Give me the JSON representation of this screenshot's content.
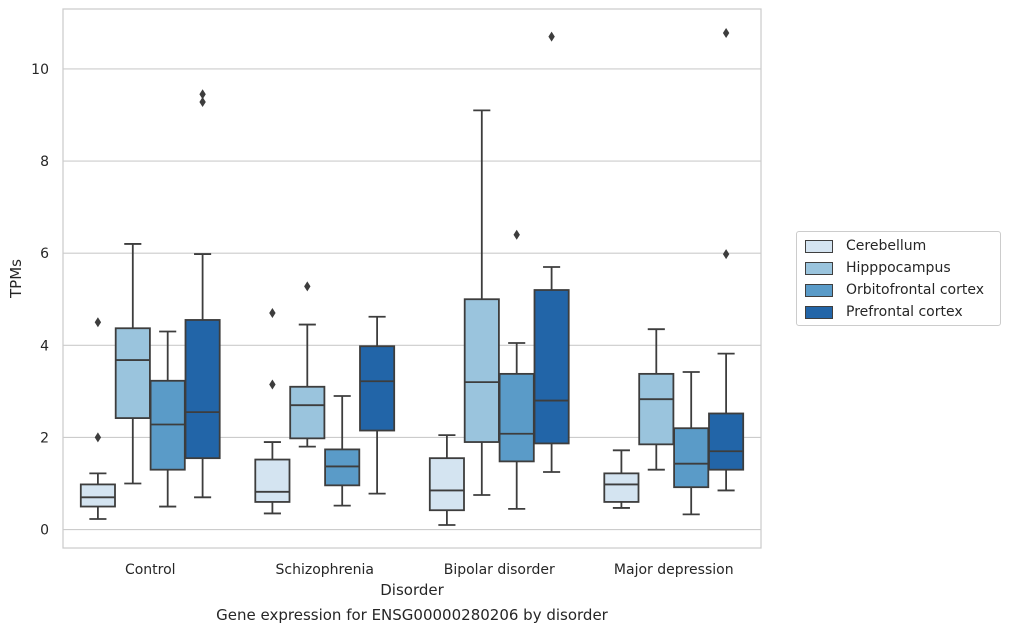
{
  "caption": "Gene expression for ENSG00000280206 by disorder",
  "chart_data": {
    "type": "box",
    "xlabel": "Disorder",
    "ylabel": "TPMs",
    "ylim": [
      -0.4,
      11.3
    ],
    "yticks": [
      0,
      2,
      4,
      6,
      8,
      10
    ],
    "grid": "horizontal",
    "legend_position": "right",
    "categories": [
      "Control",
      "Schizophrenia",
      "Bipolar disorder",
      "Major depression"
    ],
    "series": [
      {
        "name": "Cerebellum",
        "color": "#d4e4f1",
        "boxes": [
          {
            "whisker_low": 0.23,
            "q1": 0.5,
            "median": 0.7,
            "q3": 0.98,
            "whisker_high": 1.22,
            "outliers": [
              2.0,
              4.5
            ]
          },
          {
            "whisker_low": 0.35,
            "q1": 0.6,
            "median": 0.82,
            "q3": 1.52,
            "whisker_high": 1.9,
            "outliers": [
              3.15,
              4.7
            ]
          },
          {
            "whisker_low": 0.1,
            "q1": 0.42,
            "median": 0.85,
            "q3": 1.55,
            "whisker_high": 2.05,
            "outliers": []
          },
          {
            "whisker_low": 0.47,
            "q1": 0.6,
            "median": 0.98,
            "q3": 1.22,
            "whisker_high": 1.72,
            "outliers": []
          }
        ]
      },
      {
        "name": "Hipppocampus",
        "color": "#9ac4dd",
        "boxes": [
          {
            "whisker_low": 1.0,
            "q1": 2.42,
            "median": 3.68,
            "q3": 4.37,
            "whisker_high": 6.2,
            "outliers": []
          },
          {
            "whisker_low": 1.8,
            "q1": 1.98,
            "median": 2.7,
            "q3": 3.1,
            "whisker_high": 4.45,
            "outliers": [
              5.28
            ]
          },
          {
            "whisker_low": 0.75,
            "q1": 1.9,
            "median": 3.2,
            "q3": 5.0,
            "whisker_high": 9.1,
            "outliers": []
          },
          {
            "whisker_low": 1.3,
            "q1": 1.85,
            "median": 2.83,
            "q3": 3.38,
            "whisker_high": 4.35,
            "outliers": []
          }
        ]
      },
      {
        "name": "Orbitofrontal cortex",
        "color": "#5a9bc8",
        "boxes": [
          {
            "whisker_low": 0.5,
            "q1": 1.3,
            "median": 2.28,
            "q3": 3.23,
            "whisker_high": 4.3,
            "outliers": []
          },
          {
            "whisker_low": 0.52,
            "q1": 0.96,
            "median": 1.37,
            "q3": 1.74,
            "whisker_high": 2.9,
            "outliers": []
          },
          {
            "whisker_low": 0.45,
            "q1": 1.48,
            "median": 2.08,
            "q3": 3.38,
            "whisker_high": 4.05,
            "outliers": [
              6.4
            ]
          },
          {
            "whisker_low": 0.33,
            "q1": 0.92,
            "median": 1.43,
            "q3": 2.2,
            "whisker_high": 3.42,
            "outliers": []
          }
        ]
      },
      {
        "name": "Prefrontal cortex",
        "color": "#2265a8",
        "boxes": [
          {
            "whisker_low": 0.7,
            "q1": 1.55,
            "median": 2.55,
            "q3": 4.55,
            "whisker_high": 5.98,
            "outliers": [
              9.28,
              9.45
            ]
          },
          {
            "whisker_low": 0.78,
            "q1": 2.15,
            "median": 3.22,
            "q3": 3.98,
            "whisker_high": 4.62,
            "outliers": []
          },
          {
            "whisker_low": 1.25,
            "q1": 1.87,
            "median": 2.8,
            "q3": 5.2,
            "whisker_high": 5.7,
            "outliers": [
              10.7
            ]
          },
          {
            "whisker_low": 0.85,
            "q1": 1.3,
            "median": 1.7,
            "q3": 2.52,
            "whisker_high": 3.82,
            "outliers": [
              5.98,
              10.78
            ]
          }
        ]
      }
    ]
  }
}
